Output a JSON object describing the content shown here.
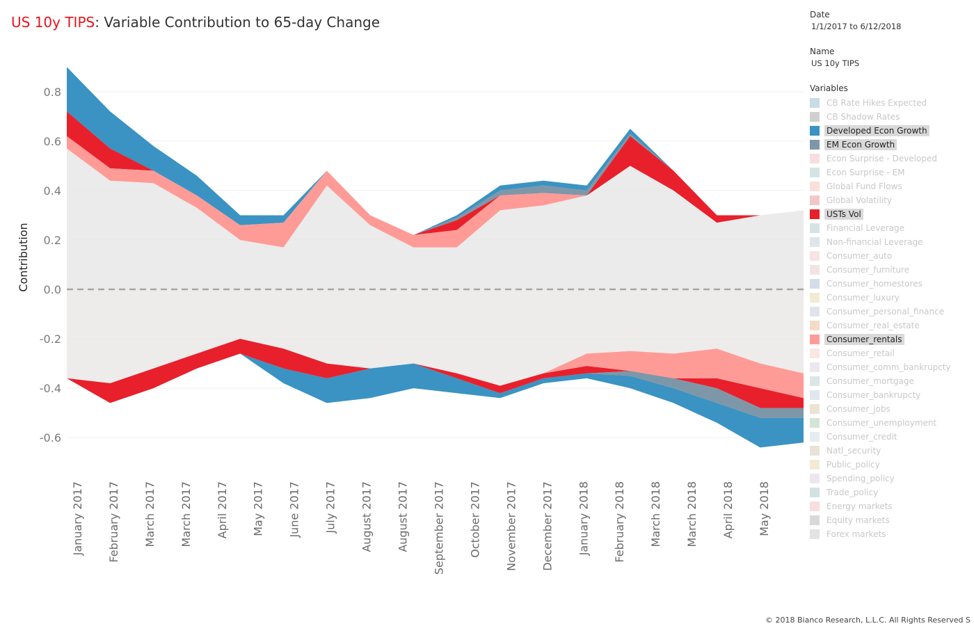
{
  "title": {
    "accent": "US 10y TIPS",
    "rest": ": Variable Contribution to 65-day Change"
  },
  "filters": {
    "date_label": "Date",
    "date_value": "1/1/2017 to 6/12/2018",
    "name_label": "Name",
    "name_value": "US 10y TIPS",
    "variables_label": "Variables"
  },
  "legend": [
    {
      "label": "CB Rate Hikes Expected",
      "color": "#c7dce3",
      "highlighted": false
    },
    {
      "label": "CB Shadow Rates",
      "color": "#cfcfcf",
      "highlighted": false
    },
    {
      "label": "Developed Econ Growth",
      "color": "#3a93c3",
      "highlighted": true
    },
    {
      "label": "EM Econ Growth",
      "color": "#7e97a8",
      "highlighted": true
    },
    {
      "label": "Econ Surprise - Developed",
      "color": "#f7dede",
      "highlighted": false
    },
    {
      "label": "Econ Surprise - EM",
      "color": "#d4e4e4",
      "highlighted": false
    },
    {
      "label": "Global Fund Flows",
      "color": "#f9e0da",
      "highlighted": false
    },
    {
      "label": "Global Volatility",
      "color": "#f0c8c8",
      "highlighted": false
    },
    {
      "label": "USTs Vol",
      "color": "#e8202c",
      "highlighted": true
    },
    {
      "label": "Financial Leverage",
      "color": "#d6e3e3",
      "highlighted": false
    },
    {
      "label": "Non-financial Leverage",
      "color": "#dfe6ea",
      "highlighted": false
    },
    {
      "label": "Consumer_auto",
      "color": "#f7e4e4",
      "highlighted": false
    },
    {
      "label": "Consumer_furniture",
      "color": "#f3e4e4",
      "highlighted": false
    },
    {
      "label": "Consumer_homestores",
      "color": "#d3dee6",
      "highlighted": false
    },
    {
      "label": "Consumer_luxury",
      "color": "#f1ebd6",
      "highlighted": false
    },
    {
      "label": "Consumer_personal_finance",
      "color": "#e0e4ea",
      "highlighted": false
    },
    {
      "label": "Consumer_real_estate",
      "color": "#f3dcc6",
      "highlighted": false
    },
    {
      "label": "Consumer_rentals",
      "color": "#ff9b97",
      "highlighted": true
    },
    {
      "label": "Consumer_retail",
      "color": "#fbe6e2",
      "highlighted": false
    },
    {
      "label": "Consumer_comm_bankrupcty",
      "color": "#ece6ee",
      "highlighted": false
    },
    {
      "label": "Consumer_mortgage",
      "color": "#dbe6e6",
      "highlighted": false
    },
    {
      "label": "Consumer_bankrupcty",
      "color": "#e1e7ef",
      "highlighted": false
    },
    {
      "label": "Consumer_jobs",
      "color": "#ebe4d3",
      "highlighted": false
    },
    {
      "label": "Consumer_unemployment",
      "color": "#d4e4d7",
      "highlighted": false
    },
    {
      "label": "Consumer_credit",
      "color": "#e6ecf0",
      "highlighted": false
    },
    {
      "label": "Natl_security",
      "color": "#e7e3d6",
      "highlighted": false
    },
    {
      "label": "Public_policy",
      "color": "#f3ead3",
      "highlighted": false
    },
    {
      "label": "Spending_policy",
      "color": "#ede6ee",
      "highlighted": false
    },
    {
      "label": "Trade_policy",
      "color": "#d2e2e2",
      "highlighted": false
    },
    {
      "label": "Energy markets",
      "color": "#f7dfdf",
      "highlighted": false
    },
    {
      "label": "Equity markets",
      "color": "#d9d9d9",
      "highlighted": false
    },
    {
      "label": "Forex markets",
      "color": "#e3e3e3",
      "highlighted": false
    }
  ],
  "chart_data": {
    "type": "area",
    "stacked": true,
    "title": "US 10y TIPS: Variable Contribution to 65-day Change",
    "ylabel": "Contribution",
    "ylim": [
      -0.76,
      0.96
    ],
    "yticks": [
      0.8,
      0.6,
      0.4,
      0.2,
      0.0,
      -0.2,
      -0.4,
      -0.6
    ],
    "zero_line": "dashed",
    "x_categories": [
      "January 2017",
      "February 2017",
      "March 2017",
      "March 2017",
      "April 2017",
      "May 2017",
      "June 2017",
      "July 2017",
      "August 2017",
      "August 2017",
      "September 2017",
      "October 2017",
      "November 2017",
      "December 2017",
      "January 2018",
      "February 2018",
      "March 2018",
      "March 2018",
      "April 2018",
      "May 2018"
    ],
    "x_points": [
      "Jan 2017",
      "Feb 2017",
      "Mar 2017",
      "Apr 2017",
      "May 2017",
      "Jun 2017",
      "Jul 2017",
      "Aug 2017",
      "Sep 2017",
      "Oct 2017",
      "Nov 2017",
      "Dec 2017",
      "Jan 2018",
      "Feb 2018",
      "Mar 2018",
      "Apr 2018",
      "May 2018",
      "Jun 2018"
    ],
    "totals": {
      "positive": [
        0.9,
        0.72,
        0.58,
        0.46,
        0.3,
        0.3,
        0.48,
        0.3,
        0.22,
        0.3,
        0.42,
        0.44,
        0.42,
        0.65,
        0.48,
        0.3,
        0.3,
        0.32
      ],
      "negative": [
        -0.36,
        -0.46,
        -0.4,
        -0.32,
        -0.26,
        -0.38,
        -0.46,
        -0.44,
        -0.4,
        -0.42,
        -0.44,
        -0.38,
        -0.36,
        -0.4,
        -0.46,
        -0.54,
        -0.64,
        -0.62
      ]
    },
    "highlighted_series": [
      {
        "name": "Developed Econ Growth",
        "positive": [
          0.18,
          0.15,
          0.1,
          0.08,
          0.04,
          0.03,
          0.0,
          0.0,
          0.0,
          0.01,
          0.02,
          0.02,
          0.02,
          0.02,
          0.0,
          0.0,
          0.0,
          0.0
        ],
        "negative": [
          0.0,
          0.0,
          0.0,
          0.0,
          0.0,
          -0.06,
          -0.1,
          -0.12,
          -0.1,
          -0.06,
          -0.02,
          -0.02,
          -0.02,
          -0.05,
          -0.06,
          -0.08,
          -0.12,
          -0.1
        ]
      },
      {
        "name": "EM Econ Growth",
        "positive": [
          0.0,
          0.0,
          0.0,
          0.0,
          0.0,
          0.0,
          0.0,
          0.0,
          0.0,
          0.01,
          0.02,
          0.03,
          0.02,
          0.01,
          0.0,
          0.0,
          0.0,
          0.0
        ],
        "negative": [
          0.0,
          0.0,
          0.0,
          0.0,
          0.0,
          0.0,
          0.0,
          0.0,
          0.0,
          0.0,
          0.0,
          0.0,
          0.0,
          -0.02,
          -0.04,
          -0.06,
          -0.04,
          -0.04
        ]
      },
      {
        "name": "USTs Vol",
        "positive": [
          0.1,
          0.08,
          0.0,
          0.0,
          0.0,
          0.0,
          0.0,
          0.0,
          0.0,
          0.04,
          0.0,
          0.0,
          0.0,
          0.12,
          0.08,
          0.03,
          0.0,
          0.0
        ],
        "negative": [
          0.0,
          -0.08,
          -0.08,
          -0.06,
          -0.06,
          -0.08,
          -0.06,
          0.0,
          0.0,
          -0.02,
          -0.03,
          -0.02,
          -0.03,
          0.0,
          0.0,
          -0.04,
          -0.08,
          -0.04
        ]
      },
      {
        "name": "Consumer_rentals",
        "positive": [
          0.05,
          0.05,
          0.05,
          0.05,
          0.06,
          0.1,
          0.06,
          0.04,
          0.05,
          0.07,
          0.06,
          0.05,
          0.0,
          0.0,
          0.0,
          0.0,
          0.0,
          0.0
        ],
        "negative": [
          0.0,
          0.0,
          0.0,
          0.0,
          0.0,
          0.0,
          0.0,
          0.0,
          0.0,
          0.0,
          0.0,
          0.0,
          -0.05,
          -0.08,
          -0.1,
          -0.12,
          -0.1,
          -0.1
        ]
      }
    ]
  },
  "footer": {
    "copyright": "© 2018 Bianco Research, L.L.C. All Rights Reserved  S"
  }
}
